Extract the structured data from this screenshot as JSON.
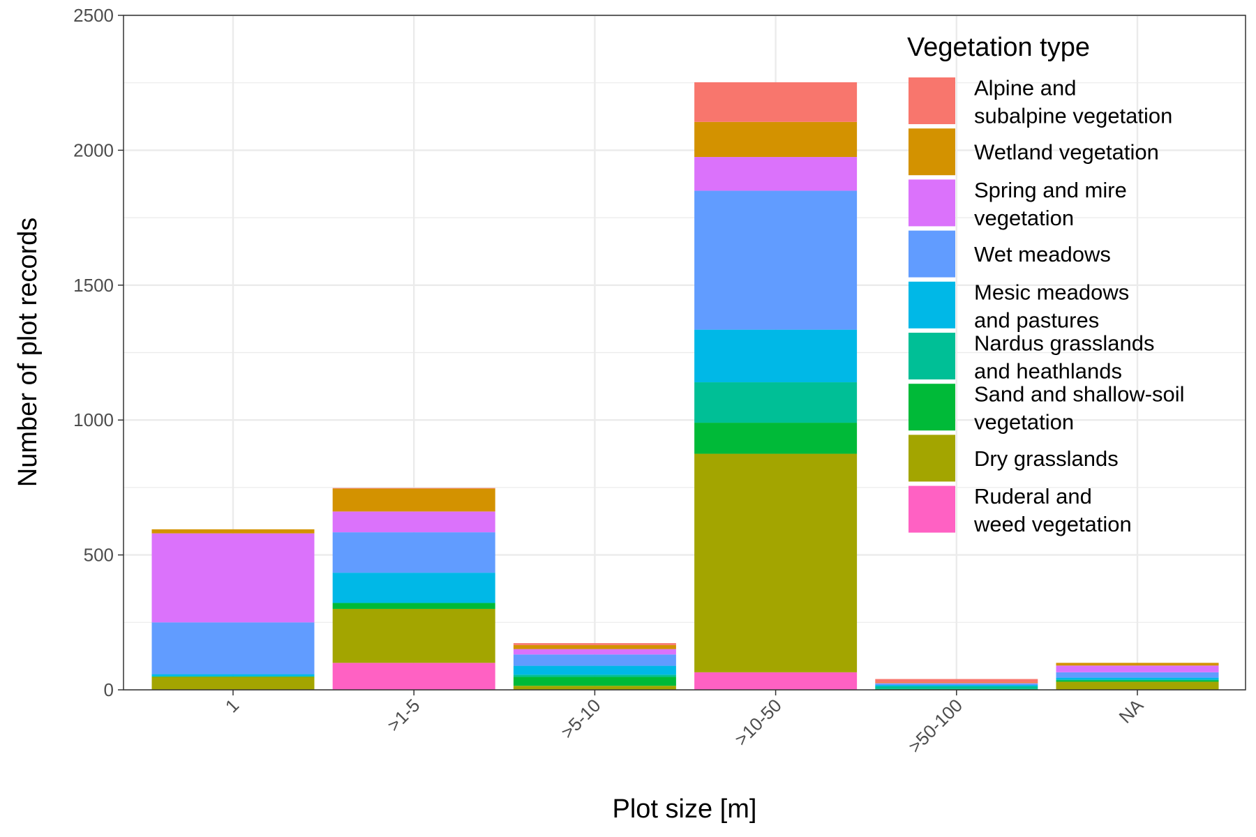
{
  "chart_data": {
    "type": "bar",
    "stacked": true,
    "xlabel": "Plot size [m]",
    "ylabel": "Number of plot records",
    "ylim": [
      0,
      2500
    ],
    "yticks": [
      0,
      500,
      1000,
      1500,
      2000,
      2500
    ],
    "grid": true,
    "legend_position": "top-right (inside plot)",
    "categories": [
      "1",
      ">1-5",
      ">5-10",
      ">10-50",
      ">50-100",
      "NA"
    ],
    "legend_title": "Vegetation type",
    "series": [
      {
        "name": "Ruderal and weed vegetation",
        "label_lines": [
          "Ruderal and",
          "weed vegetation"
        ],
        "color": "#FF61C3",
        "values": [
          0,
          100,
          0,
          65,
          0,
          0
        ]
      },
      {
        "name": "Dry grasslands",
        "label_lines": [
          "Dry grasslands"
        ],
        "color": "#A3A500",
        "values": [
          48,
          200,
          15,
          810,
          0,
          30
        ]
      },
      {
        "name": "Sand and shallow-soil vegetation",
        "label_lines": [
          "Sand and shallow-soil",
          "vegetation"
        ],
        "color": "#00BA38",
        "values": [
          2,
          22,
          33,
          115,
          3,
          5
        ]
      },
      {
        "name": "Nardus grasslands and heathlands",
        "label_lines": [
          "Nardus grasslands",
          "and heathlands"
        ],
        "color": "#00BF96",
        "values": [
          0,
          0,
          8,
          150,
          10,
          3
        ]
      },
      {
        "name": "Mesic meadows and pastures",
        "label_lines": [
          "Mesic meadows",
          "and pastures"
        ],
        "color": "#00B8E7",
        "values": [
          8,
          112,
          33,
          195,
          5,
          7
        ]
      },
      {
        "name": "Wet meadows",
        "label_lines": [
          "Wet meadows"
        ],
        "color": "#619CFF",
        "values": [
          192,
          150,
          42,
          515,
          5,
          20
        ]
      },
      {
        "name": "Spring and mire vegetation",
        "label_lines": [
          "Spring and mire",
          "vegetation"
        ],
        "color": "#DB72FB",
        "values": [
          330,
          77,
          20,
          125,
          2,
          25
        ]
      },
      {
        "name": "Wetland vegetation",
        "label_lines": [
          "Wetland vegetation"
        ],
        "color": "#D39200",
        "values": [
          15,
          85,
          15,
          130,
          2,
          10
        ]
      },
      {
        "name": "Alpine and subalpine vegetation",
        "label_lines": [
          "Alpine and",
          "subalpine vegetation"
        ],
        "color": "#F8766D",
        "values": [
          0,
          2,
          7,
          147,
          13,
          0
        ]
      }
    ]
  }
}
